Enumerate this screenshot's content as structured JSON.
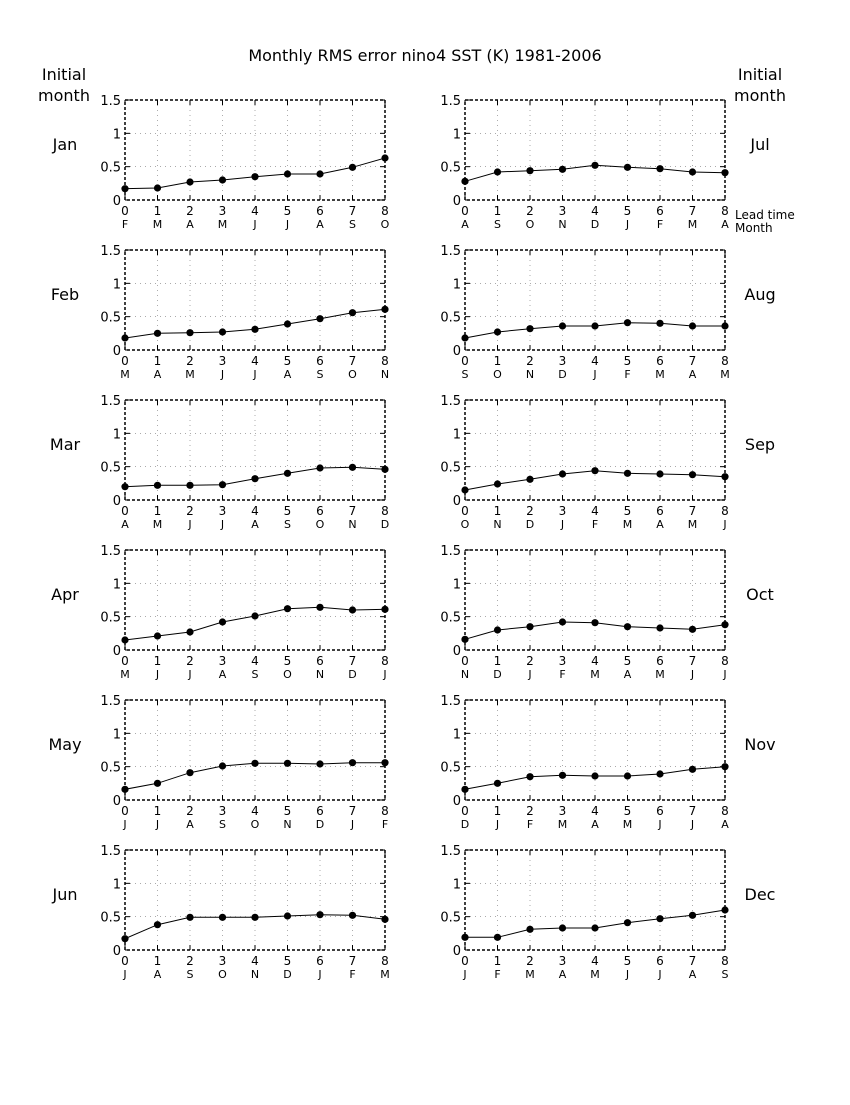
{
  "page": {
    "title": "Monthly RMS error   nino4 SST (K) 1981-2006",
    "left_header": [
      "Initial",
      "month"
    ],
    "right_header": [
      "Initial",
      "month"
    ],
    "lead_time_label": "Lead time",
    "month_label": "Month"
  },
  "chart_data": {
    "type": "line",
    "ylim": [
      0,
      1.5
    ],
    "yticks": [
      "0",
      "0.5",
      "1",
      "1.5"
    ],
    "xlim": [
      0,
      8
    ],
    "xticks": [
      "0",
      "1",
      "2",
      "3",
      "4",
      "5",
      "6",
      "7",
      "8"
    ],
    "grid": true,
    "panels": [
      {
        "initial_month": "Jan",
        "months": [
          "F",
          "M",
          "A",
          "M",
          "J",
          "J",
          "A",
          "S",
          "O"
        ],
        "values": [
          0.17,
          0.18,
          0.27,
          0.3,
          0.35,
          0.39,
          0.39,
          0.49,
          0.63
        ]
      },
      {
        "initial_month": "Feb",
        "months": [
          "M",
          "A",
          "M",
          "J",
          "J",
          "A",
          "S",
          "O",
          "N"
        ],
        "values": [
          0.18,
          0.25,
          0.26,
          0.27,
          0.31,
          0.39,
          0.47,
          0.56,
          0.61
        ]
      },
      {
        "initial_month": "Mar",
        "months": [
          "A",
          "M",
          "J",
          "J",
          "A",
          "S",
          "O",
          "N",
          "D"
        ],
        "values": [
          0.2,
          0.22,
          0.22,
          0.23,
          0.32,
          0.4,
          0.48,
          0.49,
          0.46
        ]
      },
      {
        "initial_month": "Apr",
        "months": [
          "M",
          "J",
          "J",
          "A",
          "S",
          "O",
          "N",
          "D",
          "J"
        ],
        "values": [
          0.15,
          0.21,
          0.27,
          0.42,
          0.51,
          0.62,
          0.64,
          0.6,
          0.61
        ]
      },
      {
        "initial_month": "May",
        "months": [
          "J",
          "J",
          "A",
          "S",
          "O",
          "N",
          "D",
          "J",
          "F"
        ],
        "values": [
          0.16,
          0.25,
          0.41,
          0.51,
          0.55,
          0.55,
          0.54,
          0.56,
          0.56
        ]
      },
      {
        "initial_month": "Jun",
        "months": [
          "J",
          "A",
          "S",
          "O",
          "N",
          "D",
          "J",
          "F",
          "M"
        ],
        "values": [
          0.17,
          0.38,
          0.49,
          0.49,
          0.49,
          0.51,
          0.53,
          0.52,
          0.46
        ]
      },
      {
        "initial_month": "Jul",
        "months": [
          "A",
          "S",
          "O",
          "N",
          "D",
          "J",
          "F",
          "M",
          "A"
        ],
        "values": [
          0.28,
          0.42,
          0.44,
          0.46,
          0.52,
          0.49,
          0.47,
          0.42,
          0.41
        ]
      },
      {
        "initial_month": "Aug",
        "months": [
          "S",
          "O",
          "N",
          "D",
          "J",
          "F",
          "M",
          "A",
          "M"
        ],
        "values": [
          0.18,
          0.27,
          0.32,
          0.36,
          0.36,
          0.41,
          0.4,
          0.36,
          0.36
        ]
      },
      {
        "initial_month": "Sep",
        "months": [
          "O",
          "N",
          "D",
          "J",
          "F",
          "M",
          "A",
          "M",
          "J"
        ],
        "values": [
          0.15,
          0.24,
          0.31,
          0.39,
          0.44,
          0.4,
          0.39,
          0.38,
          0.35
        ]
      },
      {
        "initial_month": "Oct",
        "months": [
          "N",
          "D",
          "J",
          "F",
          "M",
          "A",
          "M",
          "J",
          "J"
        ],
        "values": [
          0.16,
          0.3,
          0.35,
          0.42,
          0.41,
          0.35,
          0.33,
          0.31,
          0.38
        ]
      },
      {
        "initial_month": "Nov",
        "months": [
          "D",
          "J",
          "F",
          "M",
          "A",
          "M",
          "J",
          "J",
          "A"
        ],
        "values": [
          0.16,
          0.25,
          0.35,
          0.37,
          0.36,
          0.36,
          0.39,
          0.46,
          0.5
        ]
      },
      {
        "initial_month": "Dec",
        "months": [
          "J",
          "F",
          "M",
          "A",
          "M",
          "J",
          "J",
          "A",
          "S"
        ],
        "values": [
          0.19,
          0.19,
          0.31,
          0.33,
          0.33,
          0.41,
          0.47,
          0.52,
          0.6
        ]
      }
    ]
  }
}
